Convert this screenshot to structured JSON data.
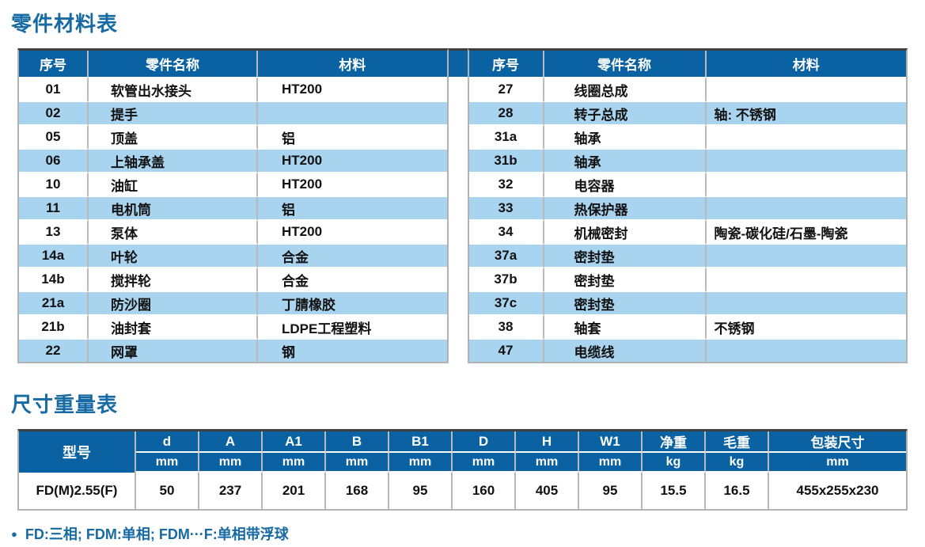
{
  "sections": {
    "parts_title": "零件材料表",
    "dims_title": "尺寸重量表"
  },
  "colors": {
    "title_blue": "#176aa3",
    "header_blue": "#0a62a2",
    "row_alt_blue": "#a9d4ef",
    "grid_gray": "#b9b9b9",
    "top_rule_dark": "#3f3f3f"
  },
  "parts_table": {
    "headers": [
      "序号",
      "零件名称",
      "材料"
    ],
    "left_rows": [
      {
        "no": "01",
        "name": "软管出水接头",
        "mat": "HT200"
      },
      {
        "no": "02",
        "name": "提手",
        "mat": ""
      },
      {
        "no": "05",
        "name": "顶盖",
        "mat": "铝"
      },
      {
        "no": "06",
        "name": "上轴承盖",
        "mat": "HT200"
      },
      {
        "no": "10",
        "name": "油缸",
        "mat": "HT200"
      },
      {
        "no": "11",
        "name": "电机筒",
        "mat": "铝"
      },
      {
        "no": "13",
        "name": "泵体",
        "mat": "HT200"
      },
      {
        "no": "14a",
        "name": "叶轮",
        "mat": "合金"
      },
      {
        "no": "14b",
        "name": "搅拌轮",
        "mat": "合金"
      },
      {
        "no": "21a",
        "name": "防沙圈",
        "mat": "丁腈橡胶"
      },
      {
        "no": "21b",
        "name": "油封套",
        "mat": "LDPE工程塑料"
      },
      {
        "no": "22",
        "name": "网罩",
        "mat": "钢"
      }
    ],
    "right_rows": [
      {
        "no": "27",
        "name": "线圈总成",
        "mat": ""
      },
      {
        "no": "28",
        "name": "转子总成",
        "mat": "轴: 不锈钢"
      },
      {
        "no": "31a",
        "name": "轴承",
        "mat": ""
      },
      {
        "no": "31b",
        "name": "轴承",
        "mat": ""
      },
      {
        "no": "32",
        "name": "电容器",
        "mat": ""
      },
      {
        "no": "33",
        "name": "热保护器",
        "mat": ""
      },
      {
        "no": "34",
        "name": "机械密封",
        "mat": "陶瓷-碳化硅/石墨-陶瓷"
      },
      {
        "no": "37a",
        "name": "密封垫",
        "mat": ""
      },
      {
        "no": "37b",
        "name": "密封垫",
        "mat": ""
      },
      {
        "no": "37c",
        "name": "密封垫",
        "mat": ""
      },
      {
        "no": "38",
        "name": "轴套",
        "mat": "不锈钢"
      },
      {
        "no": "47",
        "name": "电缆线",
        "mat": ""
      }
    ]
  },
  "dimensions_table": {
    "model_header": "型号",
    "columns": [
      {
        "label": "d",
        "unit": "mm"
      },
      {
        "label": "A",
        "unit": "mm"
      },
      {
        "label": "A1",
        "unit": "mm"
      },
      {
        "label": "B",
        "unit": "mm"
      },
      {
        "label": "B1",
        "unit": "mm"
      },
      {
        "label": "D",
        "unit": "mm"
      },
      {
        "label": "H",
        "unit": "mm"
      },
      {
        "label": "W1",
        "unit": "mm"
      },
      {
        "label": "净重",
        "unit": "kg"
      },
      {
        "label": "毛重",
        "unit": "kg"
      },
      {
        "label": "包装尺寸",
        "unit": "mm"
      }
    ],
    "rows": [
      {
        "model": "FD(M)2.55(F)",
        "values": [
          "50",
          "237",
          "201",
          "168",
          "95",
          "160",
          "405",
          "95",
          "15.5",
          "16.5",
          "455x255x230"
        ]
      }
    ]
  },
  "footer": {
    "bullet": "●",
    "note": "FD:三相; FDM:单相; FDM···F:单相带浮球"
  }
}
